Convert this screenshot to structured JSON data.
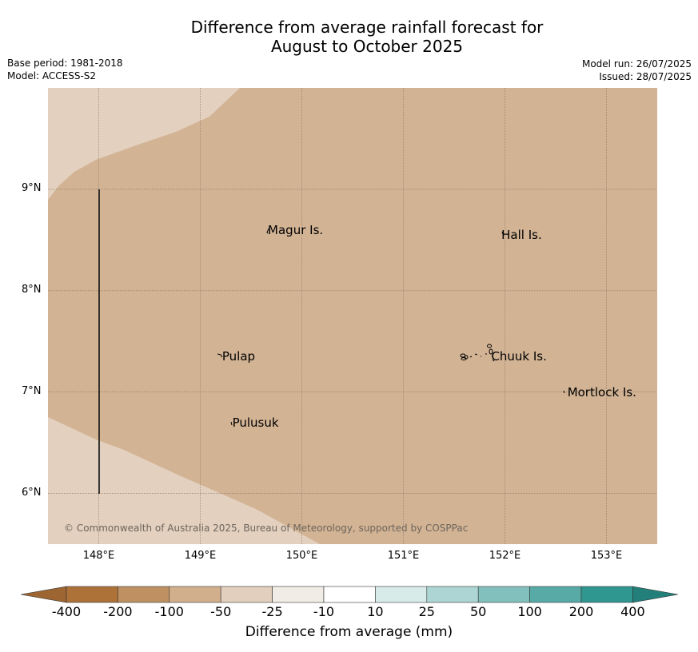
{
  "title": {
    "line1": "Difference from average rainfall forecast for",
    "line2": "August to October 2025"
  },
  "meta": {
    "base_period": "Base period: 1981-2018",
    "model": "Model: ACCESS-S2",
    "model_run": "Model run: 26/07/2025",
    "issued": "Issued: 28/07/2025"
  },
  "map": {
    "lon_range": [
      147.5,
      153.5
    ],
    "lat_range": [
      5.5,
      10.0
    ],
    "lat_ticks": [
      "9°N",
      "8°N",
      "7°N",
      "6°N"
    ],
    "lon_ticks": [
      "148°E",
      "149°E",
      "150°E",
      "151°E",
      "152°E",
      "153°E"
    ],
    "category_colors": {
      "light": "#e3d0bf",
      "main": "#d2b394"
    },
    "places": [
      {
        "name": "Magur Is.",
        "lon": 149.65,
        "lat": 8.6
      },
      {
        "name": "Hall Is.",
        "lon": 151.95,
        "lat": 8.55
      },
      {
        "name": "Pulap",
        "lon": 149.2,
        "lat": 7.35
      },
      {
        "name": "Chuuk Is.",
        "lon": 151.85,
        "lat": 7.35
      },
      {
        "name": "Mortlock Is.",
        "lon": 152.6,
        "lat": 7.0
      },
      {
        "name": "Pulusuk",
        "lon": 149.3,
        "lat": 6.7
      }
    ],
    "copyright": "© Commonwealth of Australia 2025, Bureau of Meteorology, supported by COSPPac"
  },
  "colorbar": {
    "title": "Difference from average (mm)",
    "ticks": [
      "-400",
      "-200",
      "-100",
      "-50",
      "-25",
      "-10",
      "10",
      "25",
      "50",
      "100",
      "200",
      "400"
    ],
    "colors": [
      "#ad7238",
      "#bf9061",
      "#d1af8c",
      "#e2cfbe",
      "#f1ede6",
      "#ffffff",
      "#d7ebe9",
      "#acd5d3",
      "#81c0bd",
      "#57aaa6",
      "#2f9690"
    ],
    "under_color": "#9c6532",
    "over_color": "#237f79"
  }
}
